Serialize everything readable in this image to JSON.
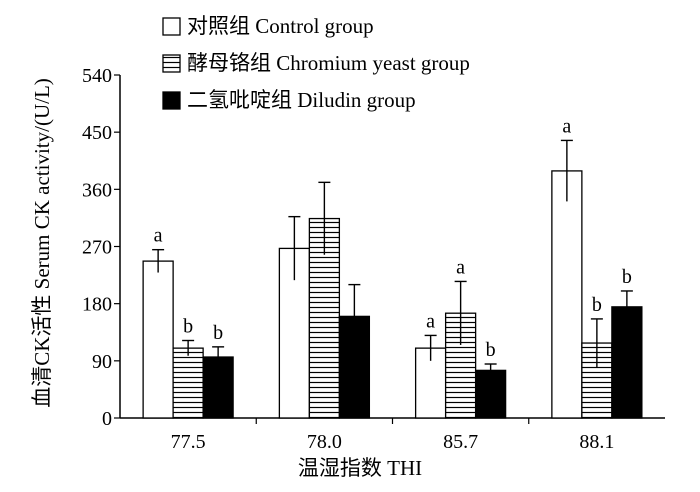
{
  "chart_data": {
    "type": "bar",
    "xlabel": "温湿指数 THI",
    "ylabel": "血清CK活性 Serum CK activity/(U/L)",
    "ylim": [
      0,
      540
    ],
    "yticks": [
      0,
      90,
      180,
      270,
      360,
      450,
      540
    ],
    "categories": [
      "77.5",
      "78.0",
      "85.7",
      "88.1"
    ],
    "grid": false,
    "legend_position": "top-left",
    "series": [
      {
        "name": "对照组  Control group",
        "pattern": "white",
        "values": [
          247,
          267,
          110,
          389
        ],
        "errors": [
          18,
          50,
          20,
          48
        ],
        "labels": [
          "a",
          "",
          "a",
          "a"
        ]
      },
      {
        "name": "酵母铬组  Chromium yeast group",
        "pattern": "horizontal-stripes",
        "values": [
          110,
          314,
          165,
          118
        ],
        "errors": [
          12,
          57,
          50,
          38
        ],
        "labels": [
          "b",
          "",
          "a",
          "b"
        ]
      },
      {
        "name": "二氢吡啶组  Diludin group",
        "pattern": "black",
        "values": [
          96,
          160,
          75,
          175
        ],
        "errors": [
          16,
          50,
          10,
          25
        ],
        "labels": [
          "b",
          "",
          "b",
          "b"
        ]
      }
    ]
  }
}
